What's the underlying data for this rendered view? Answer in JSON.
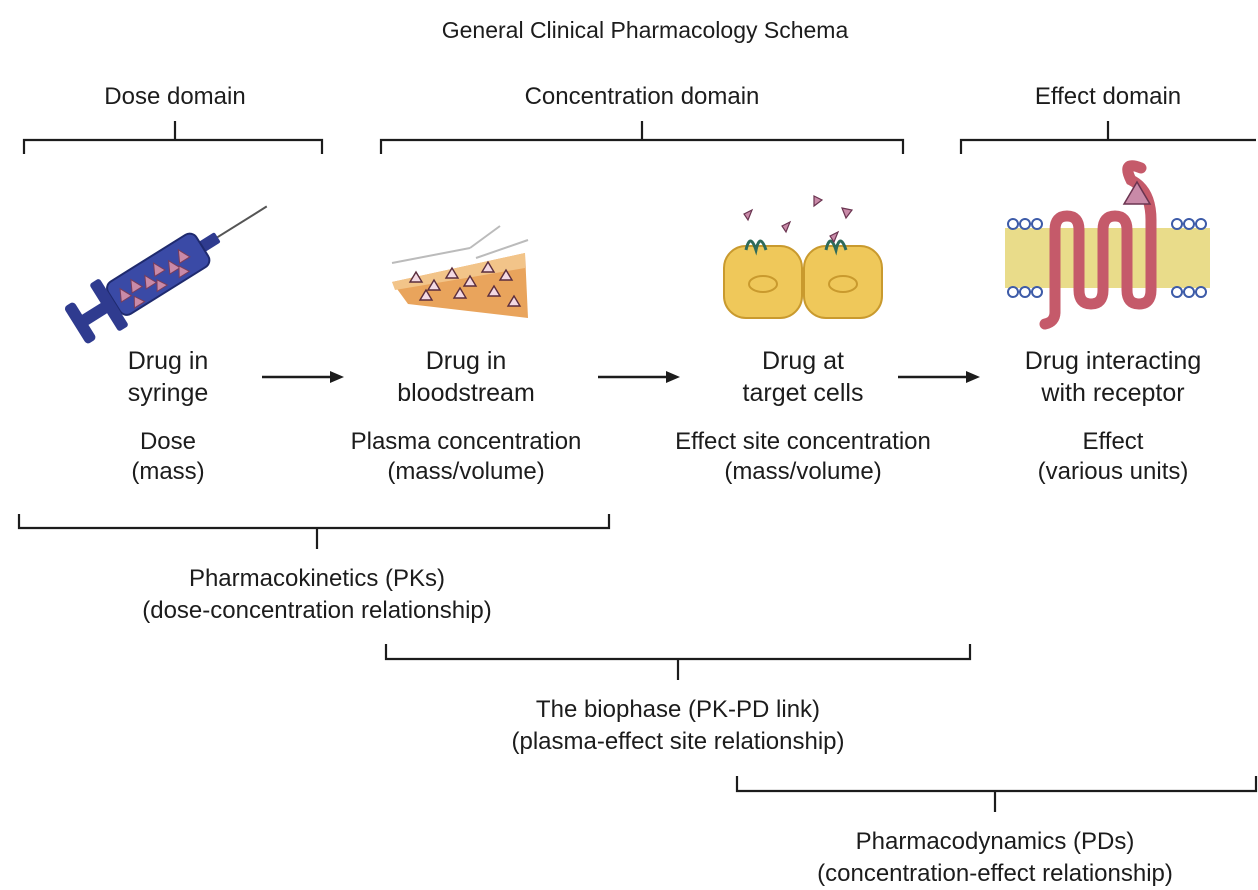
{
  "title": "General Clinical Pharmacology Schema",
  "domains": [
    {
      "label": "Dose domain"
    },
    {
      "label": "Concentration domain"
    },
    {
      "label": "Effect domain"
    }
  ],
  "stages": [
    {
      "icon": "syringe-icon",
      "line1": "Drug in",
      "line2": "syringe",
      "measure1": "Dose",
      "measure2": "(mass)"
    },
    {
      "icon": "bloodstream-icon",
      "line1": "Drug in",
      "line2": "bloodstream",
      "measure1": "Plasma concentration",
      "measure2": "(mass/volume)"
    },
    {
      "icon": "target-cells-icon",
      "line1": "Drug at",
      "line2": "target cells",
      "measure1": "Effect site concentration",
      "measure2": "(mass/volume)"
    },
    {
      "icon": "receptor-icon",
      "line1": "Drug interacting",
      "line2": "with receptor",
      "measure1": "Effect",
      "measure2": "(various units)"
    }
  ],
  "relationships": [
    {
      "line1": "Pharmacokinetics (PKs)",
      "line2": "(dose-concentration relationship)"
    },
    {
      "line1": "The biophase (PK-PD link)",
      "line2": "(plasma-effect site relationship)"
    },
    {
      "line1": "Pharmacodynamics (PDs)",
      "line2": "(concentration-effect relationship)"
    }
  ],
  "colors": {
    "ink": "#1c1c1c",
    "syringe": "#2f3b8f",
    "drug": "#b06a8a",
    "tissue": "#e8a25a",
    "cell": "#efc85a",
    "receptor": "#c55a6a",
    "membrane": "#e9dc8a",
    "lipid_head": "#3d5ba8"
  }
}
